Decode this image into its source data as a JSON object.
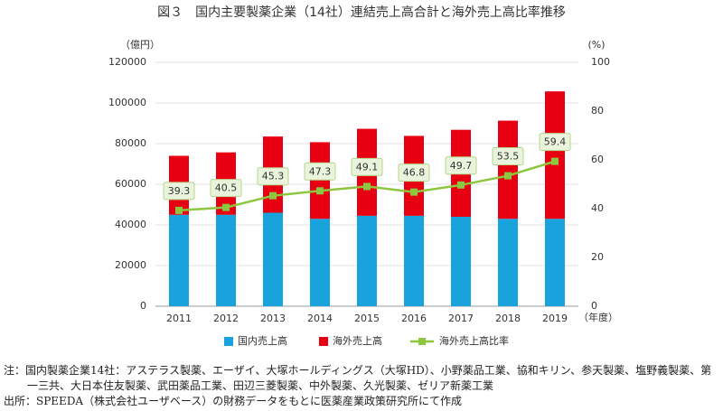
{
  "chart_data": {
    "type": "bar",
    "title": "図３　国内主要製薬企業（14社）連結売上高合計と海外売上高比率推移",
    "y_label": "（億円）",
    "y2_label": "(%)",
    "x_label": "（年度）",
    "categories": [
      "2011",
      "2012",
      "2013",
      "2014",
      "2015",
      "2016",
      "2017",
      "2018",
      "2019"
    ],
    "series": [
      {
        "name": "国内売上高",
        "color": "#18a3dc",
        "values": [
          45000,
          45000,
          46000,
          43000,
          44500,
          44500,
          44000,
          43000,
          43000
        ]
      },
      {
        "name": "海外売上高",
        "color": "#e60012",
        "values": [
          29000,
          30700,
          37500,
          37700,
          42800,
          39300,
          42800,
          48300,
          62700
        ]
      },
      {
        "name": "海外売上高比率",
        "color": "#8dc63f",
        "axis": "y2",
        "values": [
          39.3,
          40.5,
          45.3,
          47.3,
          49.1,
          46.8,
          49.7,
          53.5,
          59.4
        ]
      }
    ],
    "stacked": true,
    "ylim": [
      0,
      120000
    ],
    "yticks": [
      0,
      20000,
      40000,
      60000,
      80000,
      100000,
      120000
    ],
    "y2lim": [
      0,
      100
    ],
    "y2ticks": [
      0,
      20,
      40,
      60,
      80,
      100
    ],
    "legend": "bottom",
    "notes": [
      "注：国内製薬企業14社：アステラス製薬、エーザイ、大塚ホールディングス（大塚HD）、小野薬品工業、協和キリン、参天製薬、塩野義製薬、第一三共、大日本住友製薬、武田薬品工業、田辺三菱製薬、中外製薬、久光製薬、ゼリア新薬工業",
      "出所：SPEEDA（株式会社ユーザベース）の財務データをもとに医薬産業政策研究所にて作成"
    ]
  }
}
